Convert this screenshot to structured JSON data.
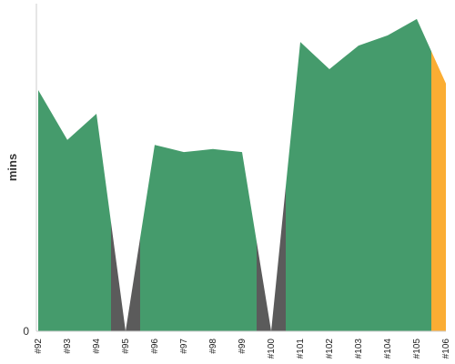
{
  "chart_data": {
    "type": "area",
    "ylabel": "mins",
    "ytick_labels": [
      "0"
    ],
    "ylim": [
      0,
      100
    ],
    "categories": [
      "#92",
      "#93",
      "#94",
      "#95",
      "#96",
      "#97",
      "#98",
      "#99",
      "#100",
      "#101",
      "#102",
      "#103",
      "#104",
      "#105",
      "#106"
    ],
    "values": [
      73.6,
      58.4,
      66.4,
      0,
      56.9,
      54.7,
      55.6,
      54.7,
      0,
      88.3,
      80.0,
      87.2,
      90.3,
      95.3,
      75.6
    ],
    "point_status": [
      "success",
      "success",
      "success",
      "failed",
      "success",
      "success",
      "success",
      "success",
      "failed",
      "success",
      "success",
      "success",
      "success",
      "success",
      "running"
    ],
    "colors": {
      "success": "#459B6C",
      "failed": "#5B5B5B",
      "running": "#FBAD33",
      "axis": "#CCCCCC"
    }
  }
}
